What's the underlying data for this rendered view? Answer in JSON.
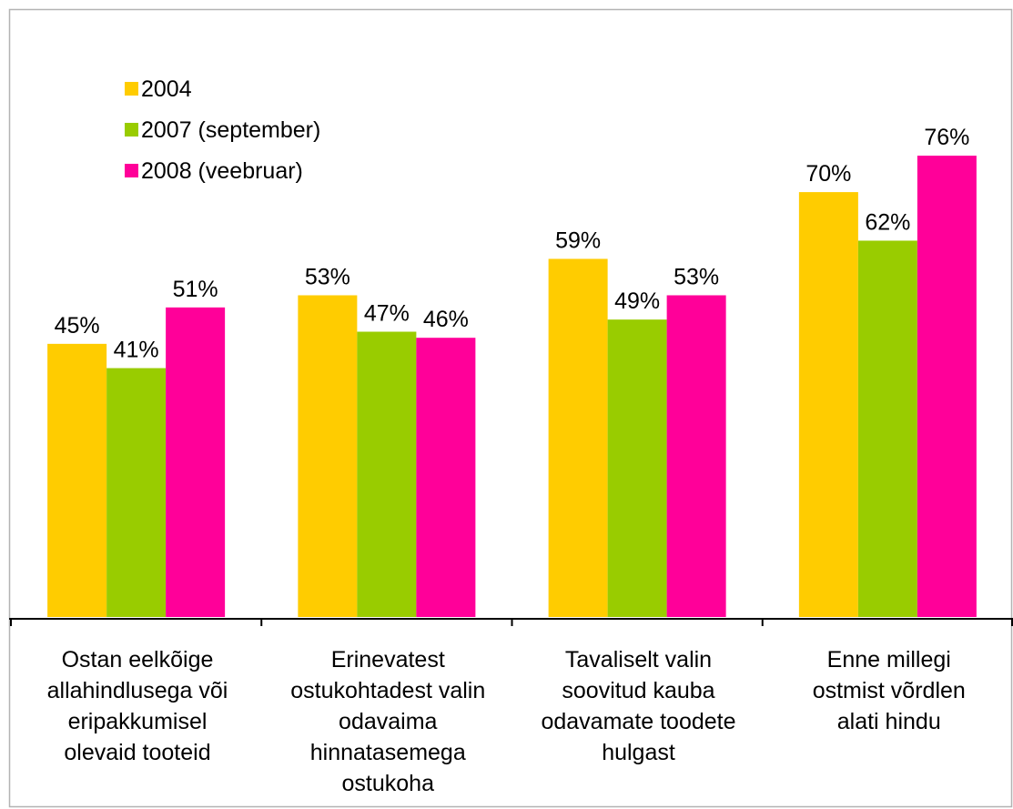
{
  "chart_data": {
    "type": "bar",
    "categories": [
      "Ostan eelkõige\nallahindlusega või\neripakkumisel\nolevaid tooteid",
      "Erinevatest\nostukohtadest valin\nodavaima\nhinnatasemega\nostukoha",
      "Tavaliselt valin\nsoovitud kauba\nodavamate toodete\nhulgast",
      "Enne millegi\nostmist võrdlen\nalati hindu"
    ],
    "series": [
      {
        "name": "2004",
        "color": "#ffcc00",
        "values": [
          45,
          53,
          59,
          70
        ],
        "value_labels": [
          "45%",
          "53%",
          "59%",
          "70%"
        ]
      },
      {
        "name": "2007 (september)",
        "color": "#99cc00",
        "values": [
          41,
          47,
          49,
          62
        ],
        "value_labels": [
          "41%",
          "47%",
          "49%",
          "62%"
        ]
      },
      {
        "name": "2008 (veebruar)",
        "color": "#ff0099",
        "values": [
          51,
          46,
          53,
          76
        ],
        "value_labels": [
          "51%",
          "46%",
          "53%",
          "76%"
        ]
      }
    ],
    "ylim": [
      0,
      100
    ],
    "legend": "top-left"
  }
}
